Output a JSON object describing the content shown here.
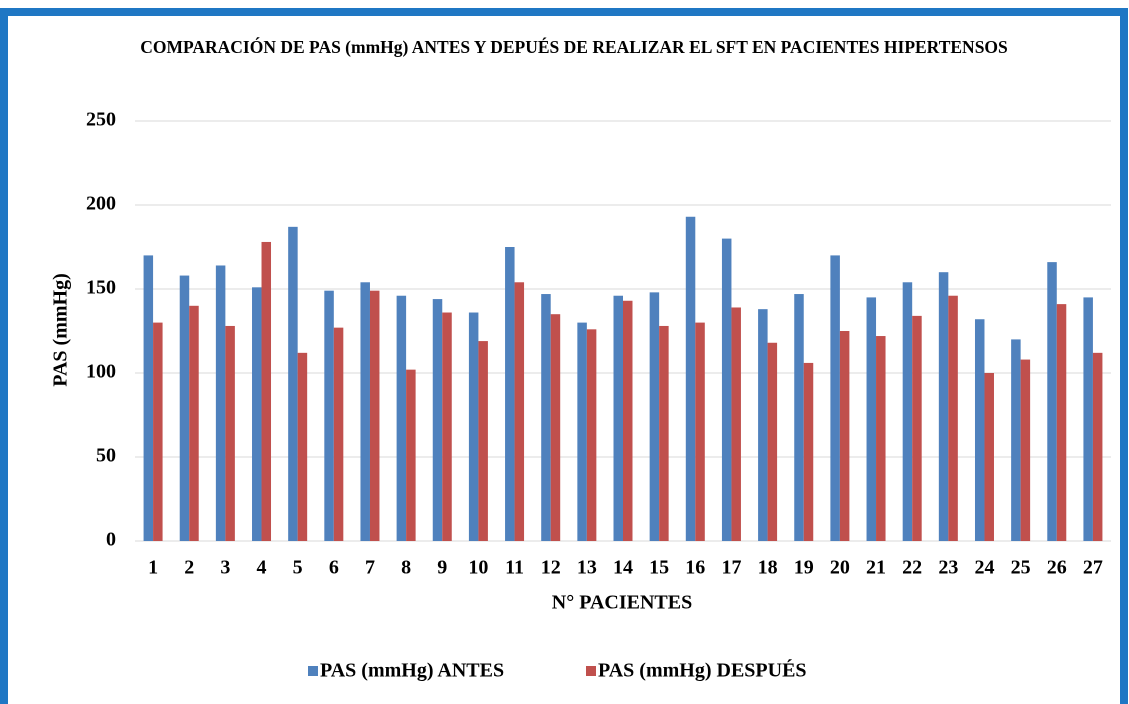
{
  "chart_data": {
    "type": "bar",
    "title": "COMPARACIÓN DE PAS (mmHg) ANTES Y DEPUÉS DE REALIZAR EL SFT EN PACIENTES HIPERTENSOS",
    "xlabel": "N° PACIENTES",
    "ylabel": "PAS (mmHg)",
    "categories": [
      "1",
      "2",
      "3",
      "4",
      "5",
      "6",
      "7",
      "8",
      "9",
      "10",
      "11",
      "12",
      "13",
      "14",
      "15",
      "16",
      "17",
      "18",
      "19",
      "20",
      "21",
      "22",
      "23",
      "24",
      "25",
      "26",
      "27"
    ],
    "series": [
      {
        "name": "PAS (mmHg) ANTES",
        "color": "#4f81bd",
        "values": [
          170,
          158,
          164,
          151,
          187,
          149,
          154,
          146,
          144,
          136,
          175,
          147,
          130,
          146,
          148,
          193,
          180,
          138,
          147,
          170,
          145,
          154,
          160,
          132,
          120,
          166,
          145
        ]
      },
      {
        "name": "PAS (mmHg) DESPUÉS",
        "color": "#c0504d",
        "values": [
          130,
          140,
          128,
          178,
          112,
          127,
          149,
          102,
          136,
          119,
          154,
          135,
          126,
          143,
          128,
          130,
          139,
          118,
          106,
          125,
          122,
          134,
          146,
          100,
          108,
          141,
          112
        ]
      }
    ],
    "ylim": [
      0,
      250
    ],
    "yticks": [
      0,
      50,
      100,
      150,
      200,
      250
    ],
    "grid": true,
    "legend": "bottom"
  }
}
